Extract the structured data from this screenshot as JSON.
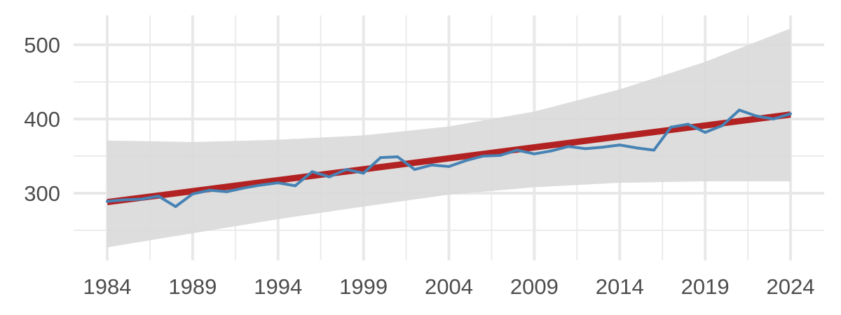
{
  "chart_data": {
    "type": "line",
    "title": "",
    "xlabel": "",
    "ylabel": "",
    "xlim": [
      1984,
      2024
    ],
    "ylim": [
      213,
      541
    ],
    "grid": true,
    "legend": "none",
    "x_ticks": [
      1984,
      1989,
      1994,
      1999,
      2004,
      2009,
      2014,
      2019,
      2024
    ],
    "y_ticks": [
      300,
      400,
      500
    ],
    "x_tick_labels": [
      "1984",
      "1989",
      "1994",
      "1999",
      "2004",
      "2009",
      "2014",
      "2019",
      "2024"
    ],
    "y_tick_labels": [
      "300",
      "400",
      "500"
    ],
    "series": [
      {
        "role": "observed",
        "color": "#4682b4",
        "x": [
          1984,
          1985,
          1986,
          1987,
          1988,
          1989,
          1990,
          1991,
          1992,
          1993,
          1994,
          1995,
          1996,
          1997,
          1998,
          1999,
          2000,
          2001,
          2002,
          2003,
          2004,
          2005,
          2006,
          2007,
          2008,
          2009,
          2010,
          2011,
          2012,
          2013,
          2014,
          2015,
          2016,
          2017,
          2018,
          2019,
          2020,
          2021,
          2022,
          2023,
          2024
        ],
        "values": [
          289,
          291,
          292,
          296,
          282,
          299,
          304,
          302,
          307,
          311,
          314,
          310,
          329,
          322,
          332,
          327,
          348,
          349,
          332,
          338,
          336,
          344,
          350,
          351,
          358,
          353,
          357,
          363,
          360,
          362,
          365,
          361,
          358,
          389,
          393,
          382,
          391,
          412,
          404,
          400,
          407
        ]
      },
      {
        "role": "trend",
        "color": "#b22222",
        "x": [
          1984,
          2024
        ],
        "values": [
          288,
          406
        ]
      }
    ],
    "band": {
      "color": "#d9d9d9",
      "x": [
        1984,
        1989,
        1994,
        1999,
        2004,
        2009,
        2014,
        2019,
        2024
      ],
      "lower": [
        227,
        246,
        265,
        282,
        298,
        308,
        314,
        316,
        316
      ],
      "upper": [
        371,
        369,
        372,
        378,
        390,
        410,
        440,
        477,
        522
      ]
    }
  }
}
